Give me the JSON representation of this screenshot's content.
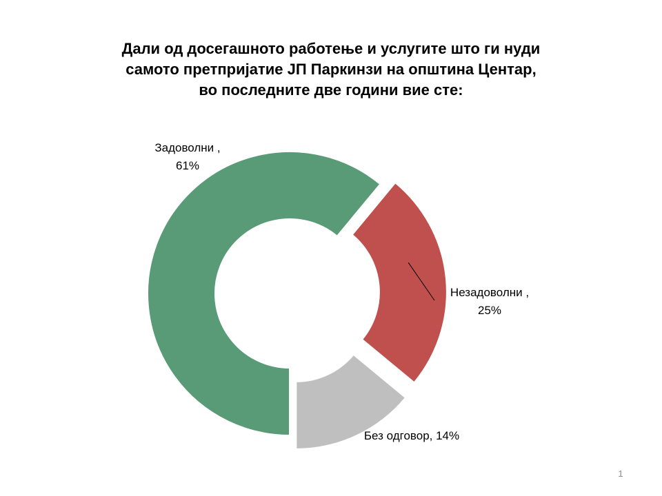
{
  "title_lines": [
    "Дали од досегашното работење и услугите што ги нуди",
    "самото претпријатие ЈП Паркинзи на општина Центар,",
    "во последните две години вие сте:"
  ],
  "page_number": "1",
  "chart_data": {
    "type": "pie",
    "variant": "donut",
    "categories": [
      "Задоволни",
      "Незадоволни",
      "Без одговор"
    ],
    "values": [
      61,
      25,
      14
    ],
    "unit": "%",
    "colors": [
      "#589B76",
      "#C0504D",
      "#BFBFBF"
    ],
    "labels": [
      {
        "lines": [
          "Задоволни ,",
          "61%"
        ]
      },
      {
        "lines": [
          "Незадоволни ,",
          "25%"
        ]
      },
      {
        "lines": [
          "Без одговор, 14%"
        ]
      }
    ],
    "title": "Дали од досегашното работење и услугите што ги нуди самото претпријатие ЈП Паркинзи на општина Центар, во последните две години вие сте:",
    "legend": "none"
  }
}
